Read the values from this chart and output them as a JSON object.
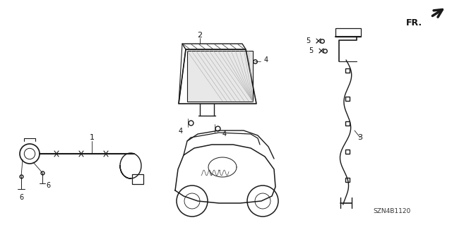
{
  "bg_color": "#ffffff",
  "diagram_code": "SZN4B1120",
  "line_color": "#1a1a1a",
  "text_color": "#111111",
  "fig_w": 6.4,
  "fig_h": 3.19,
  "dpi": 100
}
